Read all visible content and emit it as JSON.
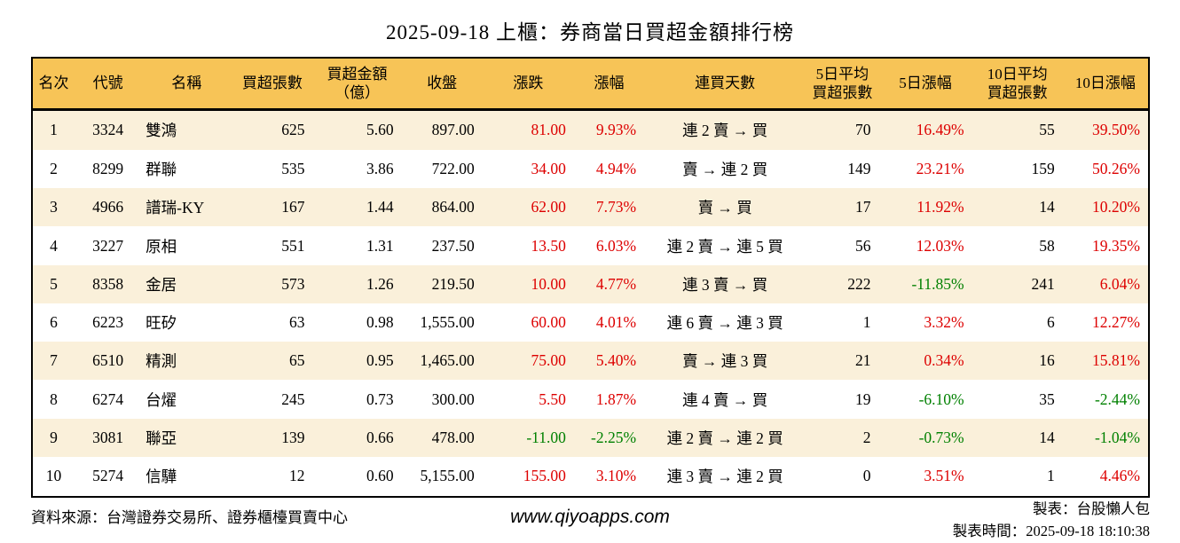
{
  "title": "2025-09-18 上櫃：券商當日買超金額排行榜",
  "colors": {
    "up_red": "#dd0000",
    "down_green": "#008000",
    "header_bg": "#f7c457",
    "row_stripe_bg": "#faf0da",
    "border": "#000000"
  },
  "table": {
    "headers": [
      "名次",
      "代號",
      "名稱",
      "買超張數",
      "買超金額\n（億）",
      "收盤",
      "漲跌",
      "漲幅",
      "連買天數",
      "5日平均\n買超張數",
      "5日漲幅",
      "10日平均\n買超張數",
      "10日漲幅"
    ]
  },
  "chart_data": {
    "type": "table",
    "title": "2025-09-18 上櫃：券商當日買超金額排行榜",
    "columns": [
      "名次",
      "代號",
      "名稱",
      "買超張數",
      "買超金額（億）",
      "收盤",
      "漲跌",
      "漲幅",
      "連買天數",
      "5日平均買超張數",
      "5日漲幅",
      "10日平均買超張數",
      "10日漲幅"
    ],
    "rows": [
      [
        "1",
        "3324",
        "雙鴻",
        "625",
        "5.60",
        "897.00",
        "81.00",
        "9.93%",
        "連 2 賣 → 買",
        "70",
        "16.49%",
        "55",
        "39.50%"
      ],
      [
        "2",
        "8299",
        "群聯",
        "535",
        "3.86",
        "722.00",
        "34.00",
        "4.94%",
        "賣 → 連 2 買",
        "149",
        "23.21%",
        "159",
        "50.26%"
      ],
      [
        "3",
        "4966",
        "譜瑞-KY",
        "167",
        "1.44",
        "864.00",
        "62.00",
        "7.73%",
        "賣 → 買",
        "17",
        "11.92%",
        "14",
        "10.20%"
      ],
      [
        "4",
        "3227",
        "原相",
        "551",
        "1.31",
        "237.50",
        "13.50",
        "6.03%",
        "連 2 賣 → 連 5 買",
        "56",
        "12.03%",
        "58",
        "19.35%"
      ],
      [
        "5",
        "8358",
        "金居",
        "573",
        "1.26",
        "219.50",
        "10.00",
        "4.77%",
        "連 3 賣 → 買",
        "222",
        "-11.85%",
        "241",
        "6.04%"
      ],
      [
        "6",
        "6223",
        "旺矽",
        "63",
        "0.98",
        "1,555.00",
        "60.00",
        "4.01%",
        "連 6 賣 → 連 3 買",
        "1",
        "3.32%",
        "6",
        "12.27%"
      ],
      [
        "7",
        "6510",
        "精測",
        "65",
        "0.95",
        "1,465.00",
        "75.00",
        "5.40%",
        "賣 → 連 3 買",
        "21",
        "0.34%",
        "16",
        "15.81%"
      ],
      [
        "8",
        "6274",
        "台燿",
        "245",
        "0.73",
        "300.00",
        "5.50",
        "1.87%",
        "連 4 賣 → 買",
        "19",
        "-6.10%",
        "35",
        "-2.44%"
      ],
      [
        "9",
        "3081",
        "聯亞",
        "139",
        "0.66",
        "478.00",
        "-11.00",
        "-2.25%",
        "連 2 賣 → 連 2 買",
        "2",
        "-0.73%",
        "14",
        "-1.04%"
      ],
      [
        "10",
        "5274",
        "信驊",
        "12",
        "0.60",
        "5,155.00",
        "155.00",
        "3.10%",
        "連 3 賣 → 連 2 買",
        "0",
        "3.51%",
        "1",
        "4.46%"
      ]
    ]
  },
  "footer": {
    "source": "資料來源：台灣證券交易所、證券櫃檯買賣中心",
    "website": "www.qiyoapps.com",
    "maker": "製表：台股懶人包",
    "time": "製表時間：2025-09-18 18:10:38"
  }
}
